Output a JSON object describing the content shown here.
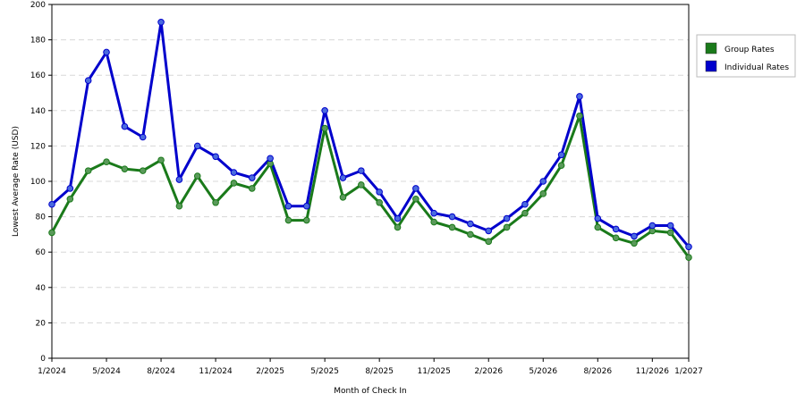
{
  "chart_data": {
    "type": "line",
    "xlabel": "Month of Check In",
    "ylabel": "Lowest Average Rate (USD)",
    "ylim": [
      0,
      200
    ],
    "yticks": [
      0,
      20,
      40,
      60,
      80,
      100,
      120,
      140,
      160,
      180,
      200
    ],
    "grid": "horizontal dashed",
    "legend_position": "right",
    "x_tick_labels": [
      "1/2024",
      "5/2024",
      "8/2024",
      "11/2024",
      "2/2025",
      "5/2025",
      "8/2025",
      "11/2025",
      "2/2026",
      "5/2026",
      "8/2026",
      "11/2026",
      "1/2027"
    ],
    "x_tick_index": [
      0,
      3,
      6,
      9,
      12,
      15,
      18,
      21,
      24,
      27,
      30,
      33,
      35
    ],
    "series": [
      {
        "name": "Group Rates",
        "color": "#1a7a1a",
        "marker": "#5a9a5a",
        "values": [
          71,
          90,
          106,
          111,
          107,
          106,
          112,
          86,
          103,
          88,
          99,
          96,
          110,
          78,
          78,
          130,
          91,
          98,
          88,
          74,
          90,
          77,
          74,
          70,
          66,
          74,
          82,
          93,
          109,
          137,
          74,
          68,
          65,
          72,
          71,
          57
        ]
      },
      {
        "name": "Individual Rates",
        "color": "#0000cc",
        "marker": "#4a6adf",
        "values": [
          87,
          96,
          157,
          173,
          131,
          125,
          190,
          101,
          120,
          114,
          105,
          102,
          113,
          86,
          86,
          140,
          102,
          106,
          94,
          79,
          96,
          82,
          80,
          76,
          72,
          79,
          87,
          100,
          115,
          148,
          79,
          73,
          69,
          75,
          75,
          63
        ]
      }
    ]
  }
}
